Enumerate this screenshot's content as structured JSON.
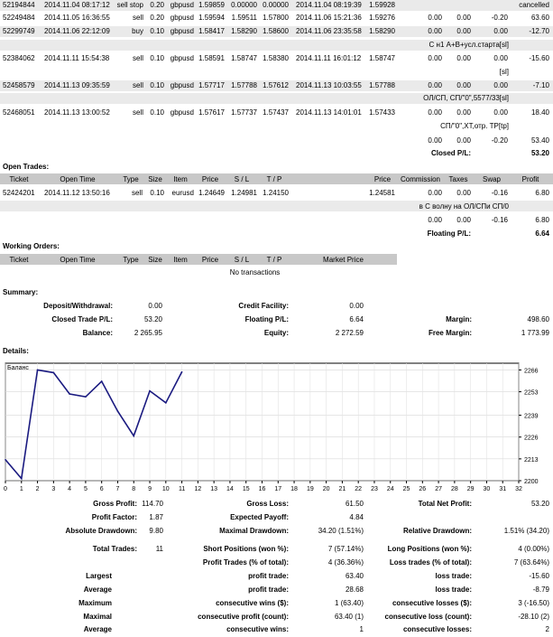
{
  "closed_trades": [
    {
      "ticket": "52194844",
      "open_time": "2014.11.04 08:17:12",
      "type": "sell stop",
      "size": "0.20",
      "item": "gbpusd",
      "price": "1.59859",
      "sl": "0.00000",
      "tp": "0.00000",
      "close_time": "2014.11.04 08:19:39",
      "close_price": "1.59928",
      "commission": "",
      "taxes": "",
      "swap": "",
      "profit": "cancelled"
    },
    {
      "ticket": "52249484",
      "open_time": "2014.11.05 16:36:55",
      "type": "sell",
      "size": "0.20",
      "item": "gbpusd",
      "price": "1.59594",
      "sl": "1.59511",
      "tp": "1.57800",
      "close_time": "2014.11.06 15:21:36",
      "close_price": "1.59276",
      "commission": "0.00",
      "taxes": "0.00",
      "swap": "-0.20",
      "profit": "63.60"
    },
    {
      "ticket": "52299749",
      "open_time": "2014.11.06 22:12:09",
      "type": "buy",
      "size": "0.10",
      "item": "gbpusd",
      "price": "1.58417",
      "sl": "1.58290",
      "tp": "1.58600",
      "close_time": "2014.11.06 23:35:58",
      "close_price": "1.58290",
      "commission": "0.00",
      "taxes": "0.00",
      "swap": "0.00",
      "profit": "-12.70"
    },
    {
      "ticket": "52384062",
      "open_time": "2014.11.11 15:54:38",
      "type": "sell",
      "size": "0.10",
      "item": "gbpusd",
      "price": "1.58591",
      "sl": "1.58747",
      "tp": "1.58380",
      "close_time": "2014.11.11 16:01:12",
      "close_price": "1.58747",
      "commission": "0.00",
      "taxes": "0.00",
      "swap": "0.00",
      "profit": "-15.60"
    },
    {
      "ticket": "52458579",
      "open_time": "2014.11.13 09:35:59",
      "type": "sell",
      "size": "0.10",
      "item": "gbpusd",
      "price": "1.57717",
      "sl": "1.57788",
      "tp": "1.57612",
      "close_time": "2014.11.13 10:03:55",
      "close_price": "1.57788",
      "commission": "0.00",
      "taxes": "0.00",
      "swap": "0.00",
      "profit": "-7.10"
    },
    {
      "ticket": "52468051",
      "open_time": "2014.11.13 13:00:52",
      "type": "sell",
      "size": "0.10",
      "item": "gbpusd",
      "price": "1.57617",
      "sl": "1.57737",
      "tp": "1.57437",
      "close_time": "2014.11.13 14:01:01",
      "close_price": "1.57433",
      "commission": "0.00",
      "taxes": "0.00",
      "swap": "0.00",
      "profit": "18.40"
    }
  ],
  "comments": {
    "c1": "С н1 A+B+усл.старта[sl]",
    "c2": "[sl]",
    "c3": "ОЛ/СП, СП/\"0\",5577/33[sl]",
    "c4": "СП/\"0\",ХТ,отр. TP[tp]"
  },
  "closed_totals": {
    "commission": "0.00",
    "taxes": "0.00",
    "swap": "-0.20",
    "profit": "53.40",
    "label": "Closed P/L:",
    "value": "53.20"
  },
  "open_trades": {
    "title": "Open Trades:",
    "headers": {
      "ticket": "Ticket",
      "open_time": "Open Time",
      "type": "Type",
      "size": "Size",
      "item": "Item",
      "price": "Price",
      "sl": "S / L",
      "tp": "T / P",
      "cur_price": "Price",
      "commission": "Commission",
      "taxes": "Taxes",
      "swap": "Swap",
      "profit": "Profit"
    },
    "row": {
      "ticket": "52424201",
      "open_time": "2014.11.12 13:50:16",
      "type": "sell",
      "size": "0.10",
      "item": "eurusd",
      "price": "1.24649",
      "sl": "1.24981",
      "tp": "1.24150",
      "cur_price": "1.24581",
      "commission": "0.00",
      "taxes": "0.00",
      "swap": "-0.16",
      "profit": "6.80"
    },
    "comment": "в С волну на ОЛ/СПи СП/0",
    "totals": {
      "commission": "0.00",
      "taxes": "0.00",
      "swap": "-0.16",
      "profit": "6.80"
    },
    "floating_label": "Floating P/L:",
    "floating_value": "6.64"
  },
  "working_orders": {
    "title": "Working Orders:",
    "headers": {
      "ticket": "Ticket",
      "open_time": "Open Time",
      "type": "Type",
      "size": "Size",
      "item": "Item",
      "price": "Price",
      "sl": "S / L",
      "tp": "T / P",
      "market": "Market Price"
    },
    "empty": "No transactions"
  },
  "summary": {
    "title": "Summary:",
    "deposit_label": "Deposit/Withdrawal:",
    "deposit": "0.00",
    "credit_label": "Credit Facility:",
    "credit": "0.00",
    "closed_label": "Closed Trade P/L:",
    "closed": "53.20",
    "floating_label": "Floating P/L:",
    "floating": "6.64",
    "margin_label": "Margin:",
    "margin": "498.60",
    "balance_label": "Balance:",
    "balance": "2 265.95",
    "equity_label": "Equity:",
    "equity": "2 272.59",
    "free_margin_label": "Free Margin:",
    "free_margin": "1 773.99"
  },
  "details_title": "Details:",
  "chart_data": {
    "type": "line",
    "legend": "Баланс",
    "x": [
      0,
      1,
      2,
      3,
      4,
      5,
      6,
      7,
      8,
      9,
      10,
      11
    ],
    "values": [
      2212.5,
      2201.3,
      2266.0,
      2264.4,
      2251.7,
      2250.0,
      2259.2,
      2241.4,
      2226.7,
      2253.5,
      2246.4,
      2264.8
    ],
    "ylim": [
      2200,
      2270
    ],
    "yticks": [
      "2266",
      "2253",
      "2239",
      "2226",
      "2213",
      "2200"
    ],
    "ytick_vals": [
      2266,
      2253,
      2239,
      2226,
      2213,
      2200
    ],
    "xticks": [
      "0",
      "1",
      "2",
      "3",
      "4",
      "5",
      "6",
      "7",
      "8",
      "9",
      "10",
      "11",
      "12",
      "13",
      "14",
      "15",
      "16",
      "17",
      "18",
      "19",
      "20",
      "21",
      "22",
      "23",
      "24",
      "25",
      "26",
      "27",
      "28",
      "29",
      "30",
      "31",
      "32"
    ],
    "xlim": [
      0,
      32
    ],
    "line_color": "#1a1a80"
  },
  "details": {
    "gross_profit_label": "Gross Profit:",
    "gross_profit": "114.70",
    "gross_loss_label": "Gross Loss:",
    "gross_loss": "61.50",
    "total_net_label": "Total Net Profit:",
    "total_net": "53.20",
    "profit_factor_label": "Profit Factor:",
    "profit_factor": "1.87",
    "expected_payoff_label": "Expected Payoff:",
    "expected_payoff": "4.84",
    "abs_dd_label": "Absolute Drawdown:",
    "abs_dd": "9.80",
    "max_dd_label": "Maximal Drawdown:",
    "max_dd": "34.20 (1.51%)",
    "rel_dd_label": "Relative Drawdown:",
    "rel_dd": "1.51% (34.20)",
    "total_trades_label": "Total Trades:",
    "total_trades": "11",
    "short_label": "Short Positions (won %):",
    "short": "7 (57.14%)",
    "long_label": "Long Positions (won %):",
    "long": "4 (0.00%)",
    "profit_trades_label": "Profit Trades (% of total):",
    "profit_trades": "4 (36.36%)",
    "loss_trades_label": "Loss trades (% of total):",
    "loss_trades": "7 (63.64%)",
    "largest_label": "Largest",
    "largest_profit_label": "profit trade:",
    "largest_profit": "63.40",
    "largest_loss_label": "loss trade:",
    "largest_loss": "-15.60",
    "average_label": "Average",
    "average_profit_label": "profit trade:",
    "average_profit": "28.68",
    "average_loss_label": "loss trade:",
    "average_loss": "-8.79",
    "maximum_label": "Maximum",
    "max_wins_label": "consecutive wins ($):",
    "max_wins": "1 (63.40)",
    "max_losses_label": "consecutive losses ($):",
    "max_losses": "3 (-16.50)",
    "maximal_label": "Maximal",
    "maximal_profit_label": "consecutive profit (count):",
    "maximal_profit": "63.40 (1)",
    "maximal_loss_label": "consecutive loss (count):",
    "maximal_loss": "-28.10 (2)",
    "average2_label": "Average",
    "avg_wins_label": "consecutive wins:",
    "avg_wins": "1",
    "avg_losses_label": "consecutive losses:",
    "avg_losses": "2"
  }
}
